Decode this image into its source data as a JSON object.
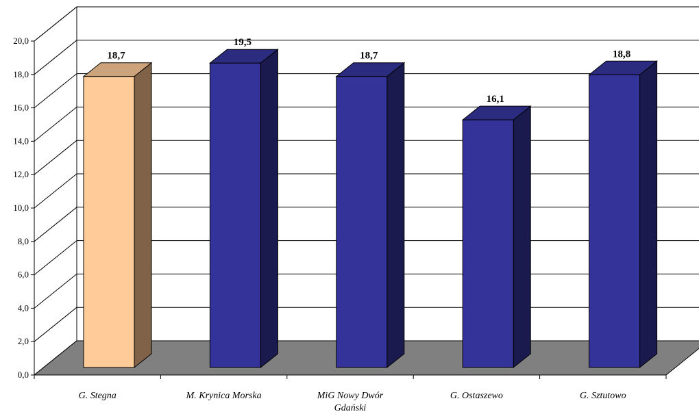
{
  "chart_data": {
    "type": "bar",
    "title": "",
    "xlabel": "",
    "ylabel": "",
    "categories": [
      [
        "G. Stegna"
      ],
      [
        "M. Krynica Morska"
      ],
      [
        "MiG Nowy Dwór",
        "Gdański"
      ],
      [
        "G. Ostaszewo"
      ],
      [
        "G. Sztutowo"
      ]
    ],
    "values": [
      18.7,
      19.5,
      18.7,
      16.1,
      18.8
    ],
    "value_labels": [
      "18,7",
      "19,5",
      "18,7",
      "16,1",
      "18,8"
    ],
    "ylim": [
      0,
      20
    ],
    "yticks": [
      "0,0",
      "2,0",
      "4,0",
      "6,0",
      "8,0",
      "10,0",
      "12,0",
      "14,0",
      "16,0",
      "18,0",
      "20,0"
    ],
    "grid": true,
    "legend": "none",
    "style": "3d-column",
    "colors": {
      "highlight_front": "#FFCC99",
      "highlight_side": "#7F6248",
      "highlight_top": "#CCA37A",
      "bar_front": "#333399",
      "bar_side": "#1A1A4F",
      "bar_top": "#2B2B80",
      "floor": "#808080"
    },
    "highlight_index": 0
  }
}
